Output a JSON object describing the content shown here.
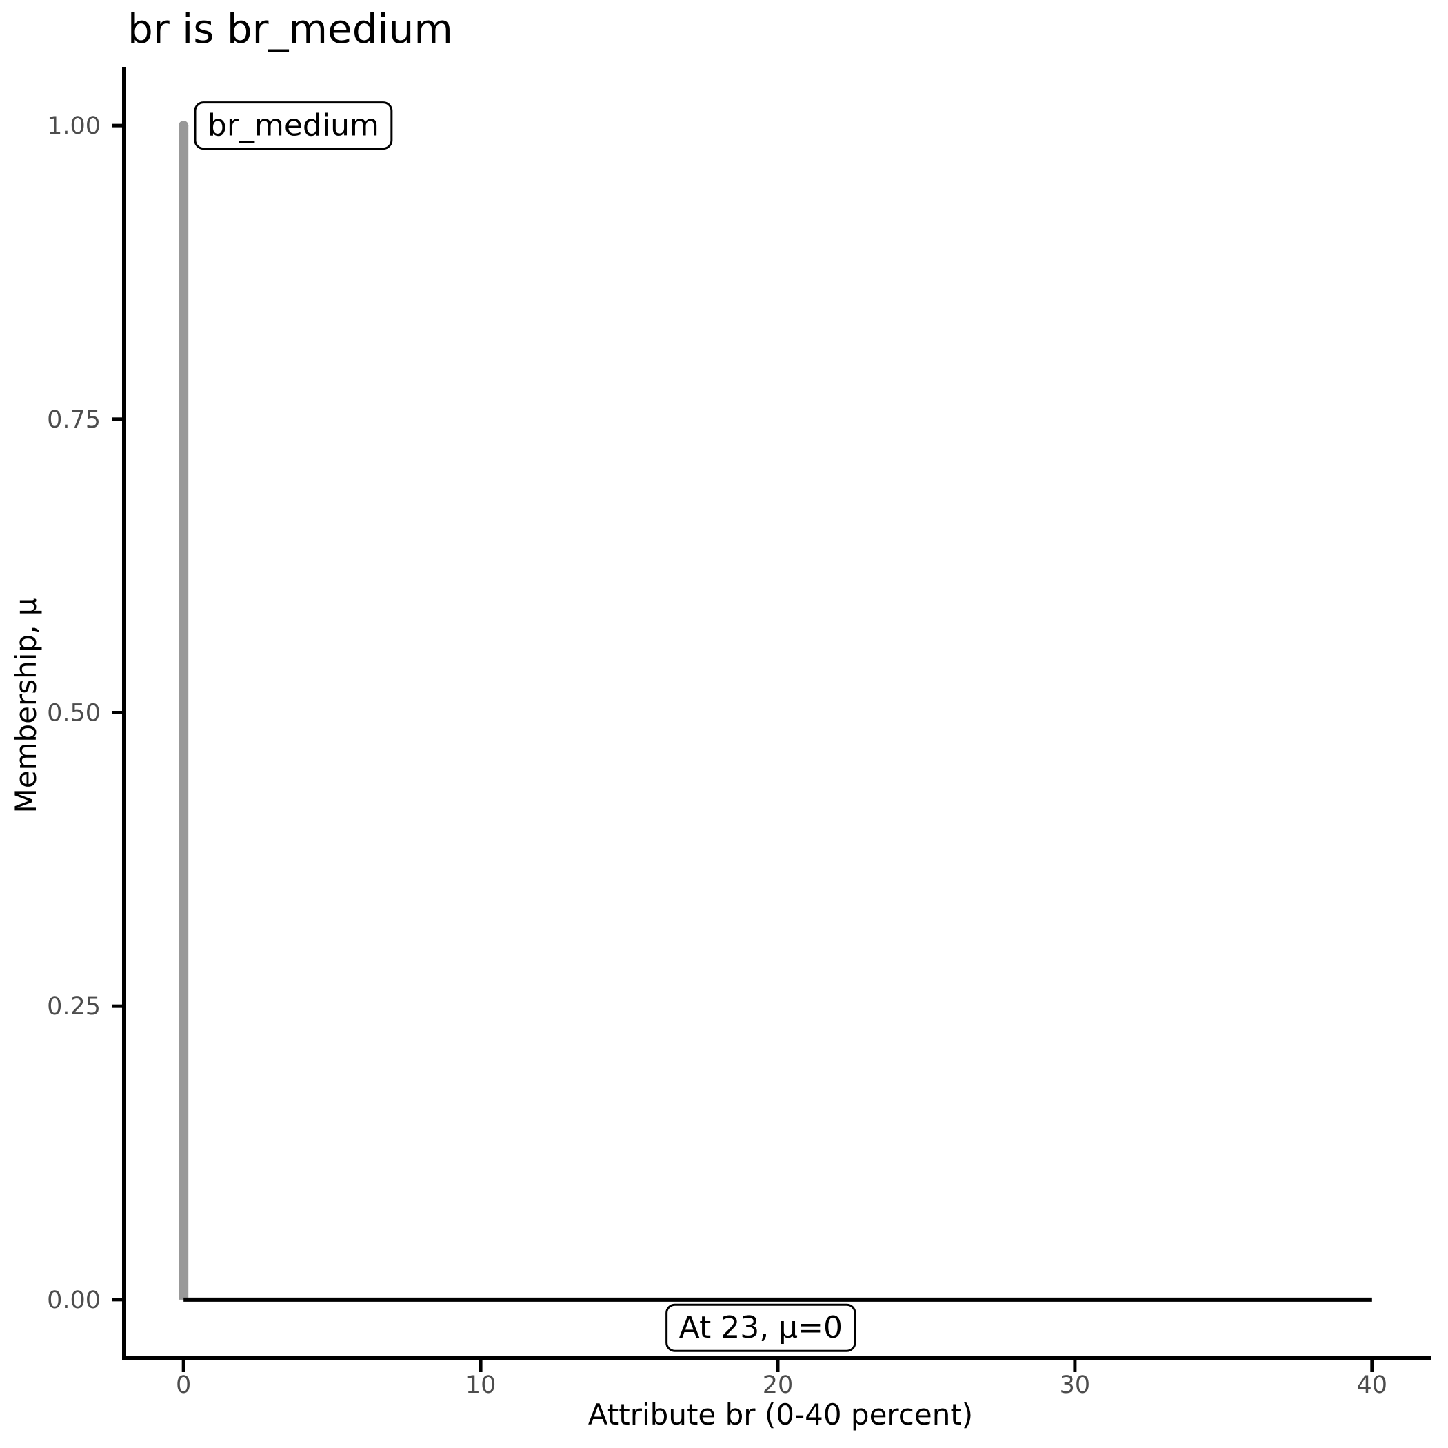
{
  "title": "br is br_medium",
  "chart_data": {
    "type": "line",
    "title": "br is br_medium",
    "xlabel": "Attribute br (0-40 percent)",
    "ylabel": "Membership, μ",
    "xlim": [
      -2,
      42
    ],
    "ylim": [
      -0.05,
      1.05
    ],
    "grid": false,
    "legend": "none",
    "x_ticks": [
      0,
      10,
      20,
      30,
      40
    ],
    "x_tick_labels": [
      "0",
      "10",
      "20",
      "30",
      "40"
    ],
    "y_ticks": [
      0,
      0.25,
      0.5,
      0.75,
      1
    ],
    "y_tick_labels": [
      "0.00",
      "0.25",
      "0.50",
      "0.75",
      "1.00"
    ],
    "series": [
      {
        "name": "br_medium-membership-function",
        "color": "#999999",
        "stroke_width": 14,
        "cap_top": "round",
        "points": [
          [
            0,
            0
          ],
          [
            0,
            1
          ]
        ]
      },
      {
        "name": "zero-membership-baseline",
        "color": "#000000",
        "stroke_width": 6,
        "points": [
          [
            0,
            0
          ],
          [
            40,
            0
          ]
        ]
      }
    ],
    "annotations": [
      {
        "text": "br_medium",
        "x": 0.39,
        "y": 1.0,
        "h_align": "left"
      },
      {
        "text": "At 23, μ=0",
        "x": 22.6,
        "y": -0.024,
        "h_align": "right"
      }
    ]
  },
  "colors": {
    "axis_line": "#000000",
    "tick_mark": "#000000",
    "tick_label": "#4d4d4d",
    "title_text": "#000000",
    "axis_title_text": "#000000",
    "annotation_border": "#000000",
    "annotation_fill": "#ffffff",
    "annotation_text": "#000000",
    "membership_line": "#999999",
    "baseline": "#000000"
  }
}
